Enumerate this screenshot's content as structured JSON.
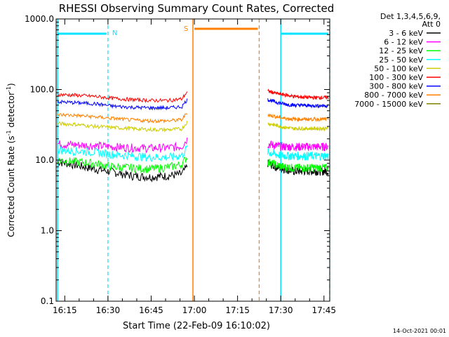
{
  "chart_data": {
    "type": "line",
    "title": "RHESSI Observing Summary Count Rates, Corrected",
    "xlabel": "Start Time (22-Feb-09 16:10:02)",
    "ylabel_main": "Corrected Count Rate (s",
    "ylabel_sup1": "-1",
    "ylabel_mid": " detector",
    "ylabel_sup2": "-1",
    "ylabel_end": ")",
    "y_scale": "log",
    "ylim": [
      0.1,
      1000
    ],
    "xlim_minutes": [
      2,
      97
    ],
    "x_ticks": [
      {
        "m": 5,
        "label": "16:15"
      },
      {
        "m": 20,
        "label": "16:30"
      },
      {
        "m": 35,
        "label": "16:45"
      },
      {
        "m": 50,
        "label": "17:00"
      },
      {
        "m": 65,
        "label": "17:15"
      },
      {
        "m": 80,
        "label": "17:30"
      },
      {
        "m": 95,
        "label": "17:45"
      }
    ],
    "y_ticks": [
      {
        "v": 0.1,
        "label": "0.1"
      },
      {
        "v": 1,
        "label": "1.0"
      },
      {
        "v": 10,
        "label": "10.0"
      },
      {
        "v": 100,
        "label": "100.0"
      },
      {
        "v": 1000,
        "label": "1000.0"
      }
    ],
    "legend_header": [
      "Det 1,3,4,5,6,9,",
      "Att 0"
    ],
    "legend_placement": "right",
    "series": [
      {
        "name": "3 - 6 keV",
        "color": "#000000",
        "seg1": [
          9.5,
          8.5,
          7.5,
          6.8,
          6.0,
          5.8,
          6.0,
          6.5
        ],
        "seg2": [
          9.0,
          8.0,
          7.5,
          7.0,
          7.0,
          7.0,
          7.0,
          7.0
        ]
      },
      {
        "name": "6 - 12 keV",
        "color": "#ff00ff",
        "seg1": [
          17,
          16.5,
          16,
          15.5,
          15,
          14.8,
          15,
          16
        ],
        "seg2": [
          17,
          16,
          15.5,
          15.5,
          15.5,
          15.5,
          15.5,
          15.5
        ]
      },
      {
        "name": "12 - 25 keV",
        "color": "#00ff00",
        "seg1": [
          10,
          9.5,
          9.0,
          8.0,
          7.8,
          7.5,
          8.0,
          9.0
        ],
        "seg2": [
          9.5,
          8.5,
          8.0,
          7.8,
          7.8,
          7.8,
          7.8,
          7.8
        ]
      },
      {
        "name": "25 - 50 keV",
        "color": "#00ffff",
        "seg1": [
          14,
          13.5,
          13,
          12,
          11.5,
          11,
          11,
          12
        ],
        "seg2": [
          13,
          12,
          11.5,
          11.5,
          11.5,
          11.5,
          11.5,
          11.5
        ]
      },
      {
        "name": "50 - 100 keV",
        "color": "#cccc00",
        "seg1": [
          33,
          32,
          30,
          29,
          28,
          27,
          27,
          28
        ],
        "seg2": [
          33,
          31,
          29,
          28,
          28,
          28,
          28,
          28
        ]
      },
      {
        "name": "100 - 300 keV",
        "color": "#ff0000",
        "seg1": [
          85,
          83,
          80,
          75,
          72,
          70,
          70,
          75
        ],
        "seg2": [
          95,
          88,
          84,
          80,
          78,
          77,
          77,
          77
        ]
      },
      {
        "name": "300 - 800 keV",
        "color": "#0000ff",
        "seg1": [
          67,
          65,
          63,
          58,
          56,
          55,
          55,
          58
        ],
        "seg2": [
          72,
          66,
          62,
          60,
          60,
          59,
          59,
          59
        ]
      },
      {
        "name": "800 - 7000 keV",
        "color": "#ff8000",
        "seg1": [
          44,
          43,
          41,
          39,
          37,
          36,
          36,
          38
        ],
        "seg2": [
          44,
          41,
          39,
          38,
          38,
          38,
          38,
          38
        ]
      },
      {
        "name": "7000 - 15000 keV",
        "color": "#808000",
        "seg1": [],
        "seg2": []
      }
    ],
    "seg1_range": [
      2.5,
      47.5
    ],
    "seg2_range": [
      75.5,
      96.5
    ],
    "annotations": {
      "N_label": "N",
      "S_label": "S",
      "night_bars": [
        [
          2.5,
          19.5
        ],
        [
          80,
          96.5
        ]
      ],
      "saa_bar": [
        50,
        72
      ],
      "cyan_solid": [
        2.5,
        80
      ],
      "cyan_dashed": [
        20,
        97
      ],
      "orange_solid": [
        49.5
      ],
      "orange_dashed": [
        72.5
      ]
    },
    "footer_date": "14-Oct-2021 00:01"
  }
}
